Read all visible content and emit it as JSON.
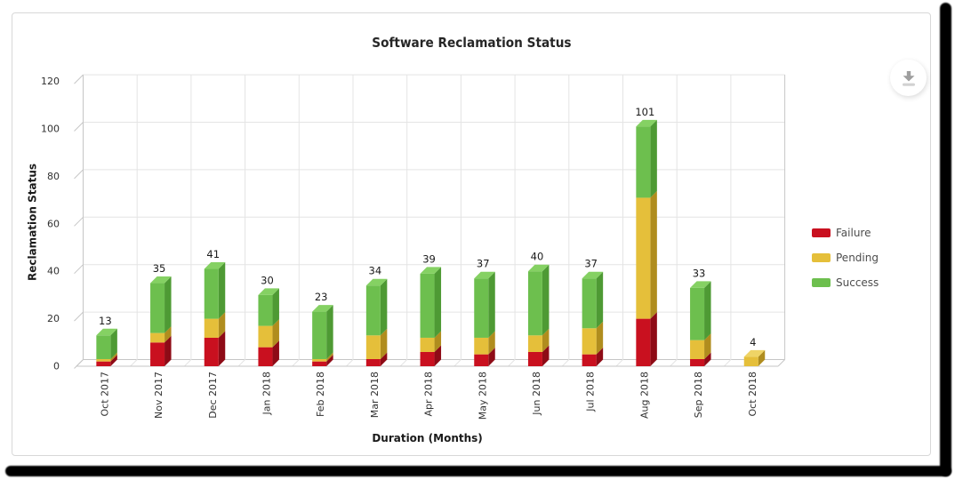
{
  "panel": {
    "title": "Software Reclamation Status"
  },
  "toolbar": {
    "download_icon": "download-icon"
  },
  "chart_data": {
    "type": "bar",
    "stacked": true,
    "effect": "3d",
    "title": "Software Reclamation Status",
    "xlabel": "Duration (Months)",
    "ylabel": "Reclamation Status",
    "ylim": [
      0,
      120
    ],
    "ytick_step": 20,
    "grid": true,
    "legend_position": "right",
    "categories": [
      "Oct 2017",
      "Nov 2017",
      "Dec 2017",
      "Jan 2018",
      "Feb 2018",
      "Mar 2018",
      "Apr 2018",
      "May 2018",
      "Jun 2018",
      "Jul 2018",
      "Aug 2018",
      "Sep 2018",
      "Oct 2018"
    ],
    "series": [
      {
        "name": "Failure",
        "color": "#c9101f",
        "color_side": "#8e0b16",
        "color_top": "#dd4450",
        "values": [
          2,
          10,
          12,
          8,
          2,
          3,
          6,
          5,
          6,
          5,
          20,
          3,
          0
        ]
      },
      {
        "name": "Pending",
        "color": "#e5bf3a",
        "color_side": "#b08d1e",
        "color_top": "#efd466",
        "values": [
          1,
          4,
          8,
          9,
          1,
          10,
          6,
          7,
          7,
          11,
          51,
          8,
          4
        ]
      },
      {
        "name": "Success",
        "color": "#6dbf4e",
        "color_side": "#4e9a34",
        "color_top": "#85d163",
        "values": [
          10,
          21,
          21,
          13,
          20,
          21,
          27,
          25,
          27,
          21,
          30,
          22,
          0
        ]
      }
    ],
    "totals": [
      13,
      35,
      41,
      30,
      23,
      34,
      39,
      37,
      40,
      37,
      101,
      33,
      4
    ]
  },
  "colors": {
    "grid": "#e4e4e4",
    "frame": "#c6c6c6",
    "tick_text": "#303030",
    "value_text": "#1a1a1a",
    "axis_title_text": "#1a1a1a"
  }
}
